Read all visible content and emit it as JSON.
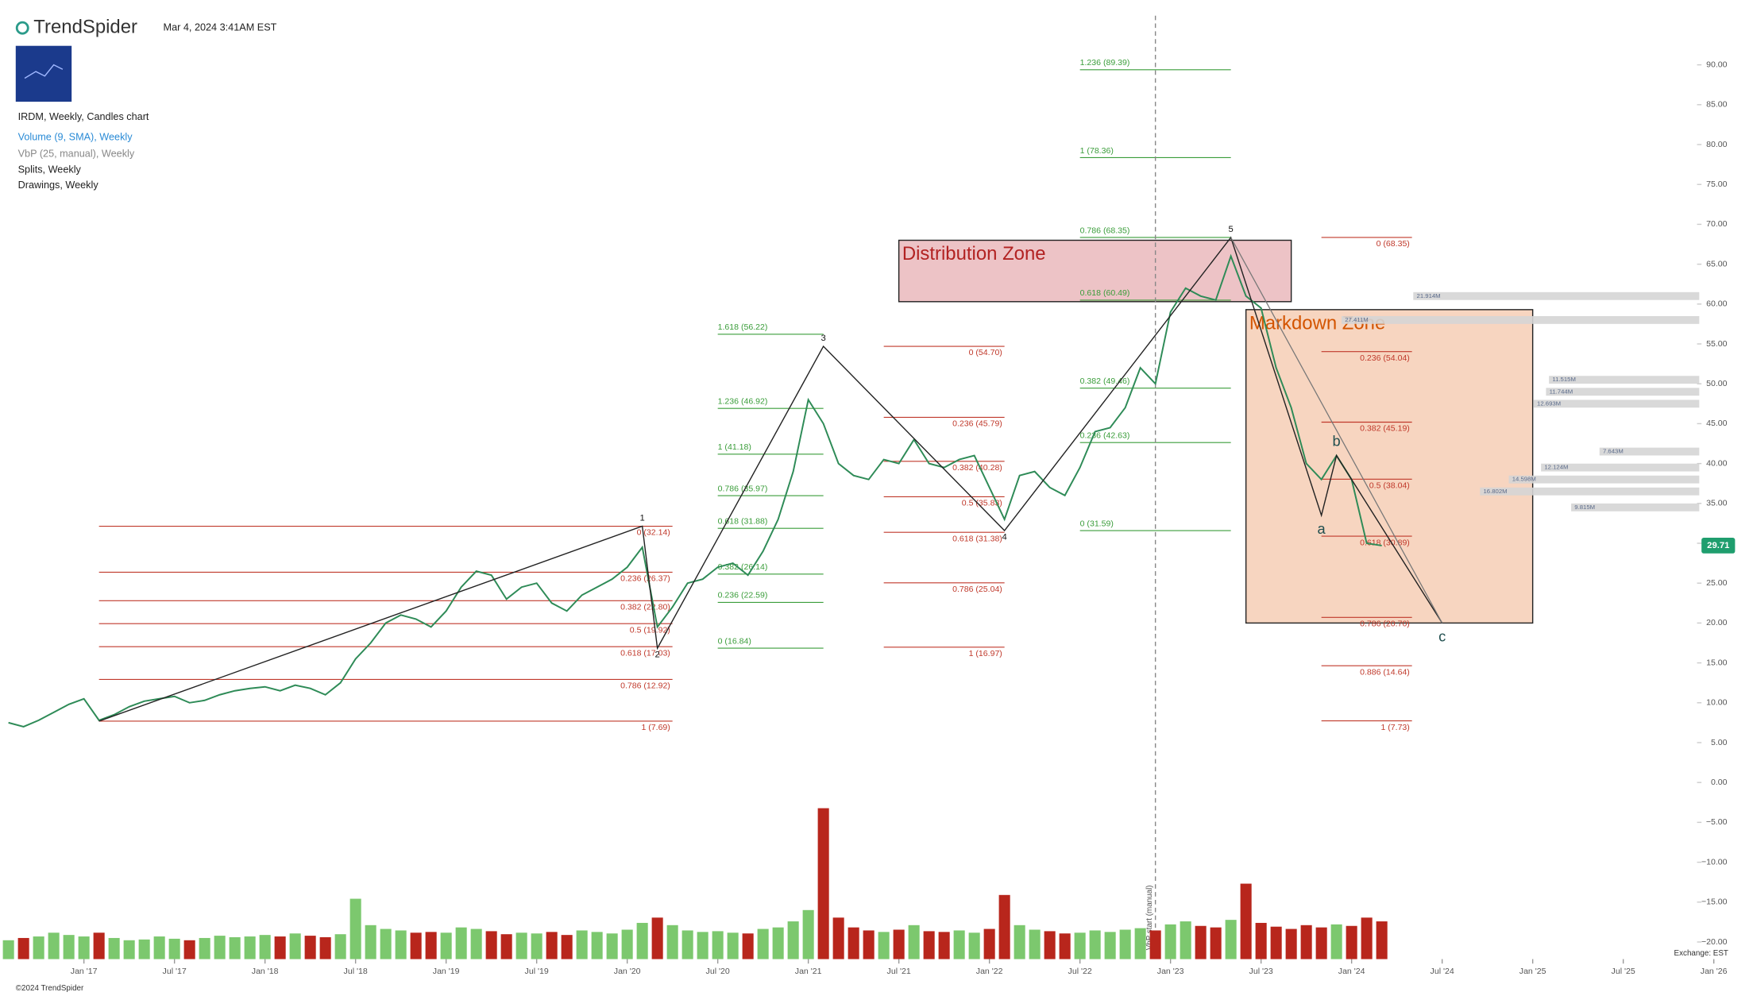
{
  "chart_data": {
    "type": "stock",
    "brand": "TrendSpider",
    "timestamp": "Mar 4, 2024 3:41AM EST",
    "legend_lines": [
      "IRDM, Weekly, Candles chart",
      "Volume (9, SMA), Weekly",
      "VbP (25, manual), Weekly",
      "Splits, Weekly",
      "Drawings, Weekly"
    ],
    "copyright": "©2024 TrendSpider",
    "exchange": "Exchange: EST",
    "last_price": 29.71,
    "x": [
      "2016-08",
      "2016-09",
      "2016-10",
      "2016-11",
      "2016-12",
      "2017-01",
      "2017-02",
      "2017-03",
      "2017-04",
      "2017-05",
      "2017-06",
      "2017-07",
      "2017-08",
      "2017-09",
      "2017-10",
      "2017-11",
      "2017-12",
      "2018-01",
      "2018-02",
      "2018-03",
      "2018-04",
      "2018-05",
      "2018-06",
      "2018-07",
      "2018-08",
      "2018-09",
      "2018-10",
      "2018-11",
      "2018-12",
      "2019-01",
      "2019-02",
      "2019-03",
      "2019-04",
      "2019-05",
      "2019-06",
      "2019-07",
      "2019-08",
      "2019-09",
      "2019-10",
      "2019-11",
      "2019-12",
      "2020-01",
      "2020-02",
      "2020-03",
      "2020-04",
      "2020-05",
      "2020-06",
      "2020-07",
      "2020-08",
      "2020-09",
      "2020-10",
      "2020-11",
      "2020-12",
      "2021-01",
      "2021-02",
      "2021-03",
      "2021-04",
      "2021-05",
      "2021-06",
      "2021-07",
      "2021-08",
      "2021-09",
      "2021-10",
      "2021-11",
      "2021-12",
      "2022-01",
      "2022-02",
      "2022-03",
      "2022-04",
      "2022-05",
      "2022-06",
      "2022-07",
      "2022-08",
      "2022-09",
      "2022-10",
      "2022-11",
      "2022-12",
      "2023-01",
      "2023-02",
      "2023-03",
      "2023-04",
      "2023-05",
      "2023-06",
      "2023-07",
      "2023-08",
      "2023-09",
      "2023-10",
      "2023-11",
      "2023-12",
      "2024-01",
      "2024-02",
      "2024-03"
    ],
    "series": [
      {
        "name": "IRDM",
        "color": "#444444",
        "values": [
          7.5,
          7.0,
          7.8,
          8.8,
          9.8,
          10.5,
          7.8,
          8.5,
          9.5,
          10.2,
          10.5,
          10.8,
          10.0,
          10.3,
          11.0,
          11.5,
          11.8,
          12.0,
          11.5,
          12.2,
          11.8,
          11.0,
          12.5,
          15.5,
          17.5,
          20.0,
          21.0,
          20.5,
          19.5,
          21.5,
          24.5,
          26.5,
          26.0,
          23.0,
          24.5,
          25.0,
          22.5,
          21.5,
          23.5,
          24.5,
          25.5,
          27.0,
          29.5,
          19.5,
          22.0,
          25.0,
          25.5,
          27.0,
          27.5,
          26.0,
          29.0,
          33.0,
          39.0,
          48.0,
          45.0,
          40.0,
          38.5,
          38.0,
          40.5,
          40.0,
          43.0,
          40.0,
          39.5,
          40.5,
          41.0,
          37.0,
          33.0,
          38.5,
          39.0,
          37.0,
          36.0,
          39.5,
          44.0,
          44.5,
          47.0,
          52.0,
          50.0,
          59.0,
          62.0,
          61.0,
          60.5,
          66.0,
          61.0,
          59.5,
          52.0,
          47.0,
          40.0,
          38.0,
          41.0,
          38.0,
          30.0,
          29.71
        ]
      },
      {
        "name": "Volume",
        "axis": "volume",
        "up_color": "#7cc86e",
        "down_color": "#b8261c",
        "values": [
          2.5,
          2.8,
          3.0,
          3.5,
          3.2,
          3.0,
          3.5,
          2.8,
          2.5,
          2.6,
          3.0,
          2.7,
          2.5,
          2.8,
          3.1,
          2.9,
          3.0,
          3.2,
          3.0,
          3.4,
          3.1,
          2.9,
          3.3,
          8.0,
          4.5,
          4.0,
          3.8,
          3.5,
          3.6,
          3.5,
          4.2,
          4.0,
          3.7,
          3.3,
          3.5,
          3.4,
          3.6,
          3.2,
          3.8,
          3.6,
          3.4,
          3.9,
          4.8,
          5.5,
          4.5,
          3.8,
          3.6,
          3.7,
          3.5,
          3.4,
          4.0,
          4.2,
          5.0,
          6.5,
          20.0,
          5.5,
          4.2,
          3.8,
          3.6,
          3.9,
          4.5,
          3.7,
          3.6,
          3.8,
          3.5,
          4.0,
          8.5,
          4.5,
          3.9,
          3.7,
          3.4,
          3.5,
          3.8,
          3.6,
          3.9,
          4.1,
          3.8,
          4.6,
          5.0,
          4.4,
          4.2,
          5.2,
          10.0,
          4.8,
          4.3,
          4.0,
          4.5,
          4.2,
          4.6,
          4.4,
          5.5,
          5.0
        ]
      }
    ],
    "ylim": [
      -22,
      95
    ],
    "yticks": [
      {
        "value": 90,
        "label": "90.00"
      },
      {
        "value": 85,
        "label": "85.00"
      },
      {
        "value": 80,
        "label": "80.00"
      },
      {
        "value": 75,
        "label": "75.00"
      },
      {
        "value": 70,
        "label": "70.00"
      },
      {
        "value": 65,
        "label": "65.00"
      },
      {
        "value": 60,
        "label": "60.00"
      },
      {
        "value": 55,
        "label": "55.00"
      },
      {
        "value": 50,
        "label": "50.00"
      },
      {
        "value": 45,
        "label": "45.00"
      },
      {
        "value": 40,
        "label": "40.00"
      },
      {
        "value": 35,
        "label": "35.00"
      },
      {
        "value": 30,
        "label": "30.00"
      },
      {
        "value": 25,
        "label": "25.00"
      },
      {
        "value": 20,
        "label": "20.00"
      },
      {
        "value": 15,
        "label": "15.00"
      },
      {
        "value": 10,
        "label": "10.00"
      },
      {
        "value": 5,
        "label": "5.00"
      },
      {
        "value": 0,
        "label": "0.00"
      },
      {
        "value": -5,
        "label": "−5.00"
      },
      {
        "value": -10,
        "label": "−10.00"
      },
      {
        "value": -15,
        "label": "−15.00"
      },
      {
        "value": -20,
        "label": "−20.00"
      }
    ],
    "xticks": [
      {
        "value": "2017-01",
        "label": "Jan '17"
      },
      {
        "value": "2017-07",
        "label": "Jul '17"
      },
      {
        "value": "2018-01",
        "label": "Jan '18"
      },
      {
        "value": "2018-07",
        "label": "Jul '18"
      },
      {
        "value": "2019-01",
        "label": "Jan '19"
      },
      {
        "value": "2019-07",
        "label": "Jul '19"
      },
      {
        "value": "2020-01",
        "label": "Jan '20"
      },
      {
        "value": "2020-07",
        "label": "Jul '20"
      },
      {
        "value": "2021-01",
        "label": "Jan '21"
      },
      {
        "value": "2021-07",
        "label": "Jul '21"
      },
      {
        "value": "2022-01",
        "label": "Jan '22"
      },
      {
        "value": "2022-07",
        "label": "Jul '22"
      },
      {
        "value": "2023-01",
        "label": "Jan '23"
      },
      {
        "value": "2023-07",
        "label": "Jul '23"
      },
      {
        "value": "2024-01",
        "label": "Jan '24"
      },
      {
        "value": "2024-07",
        "label": "Jul '24"
      },
      {
        "value": "2025-01",
        "label": "Jan '25"
      },
      {
        "value": "2025-07",
        "label": "Jul '25"
      },
      {
        "value": "2026-01",
        "label": "Jan '26"
      }
    ],
    "fib_sets": [
      {
        "color": "#c0392b",
        "from": "2017-02",
        "to": "2020-04",
        "label_align": "right",
        "levels": [
          {
            "value": 32.14,
            "label": "0 (32.14)"
          },
          {
            "value": 26.37,
            "label": "0.236 (26.37)"
          },
          {
            "value": 22.8,
            "label": "0.382 (22.80)"
          },
          {
            "value": 19.92,
            "label": "0.5 (19.92)"
          },
          {
            "value": 17.03,
            "label": "0.618 (17.03)"
          },
          {
            "value": 12.92,
            "label": "0.786 (12.92)"
          },
          {
            "value": 7.69,
            "label": "1 (7.69)"
          }
        ]
      },
      {
        "color": "#3a9d3a",
        "from": "2020-07",
        "to": "2021-02",
        "label_align": "left",
        "levels": [
          {
            "value": 16.84,
            "label": "0 (16.84)"
          },
          {
            "value": 22.59,
            "label": "0.236 (22.59)"
          },
          {
            "value": 26.14,
            "label": "0.382 (26.14)"
          },
          {
            "value": 31.88,
            "label": "0.618 (31.88)"
          },
          {
            "value": 35.97,
            "label": "0.786 (35.97)"
          },
          {
            "value": 41.18,
            "label": "1 (41.18)"
          },
          {
            "value": 46.92,
            "label": "1.236 (46.92)"
          },
          {
            "value": 56.22,
            "label": "1.618 (56.22)"
          }
        ]
      },
      {
        "color": "#c0392b",
        "from": "2021-06",
        "to": "2022-02",
        "label_align": "right",
        "levels": [
          {
            "value": 54.7,
            "label": "0 (54.70)"
          },
          {
            "value": 45.79,
            "label": "0.236 (45.79)"
          },
          {
            "value": 40.28,
            "label": "0.382 (40.28)"
          },
          {
            "value": 35.83,
            "label": "0.5 (35.83)"
          },
          {
            "value": 31.38,
            "label": "0.618 (31.38)"
          },
          {
            "value": 25.04,
            "label": "0.786 (25.04)"
          },
          {
            "value": 16.97,
            "label": "1 (16.97)"
          }
        ]
      },
      {
        "color": "#3a9d3a",
        "from": "2022-07",
        "to": "2023-05",
        "label_align": "left",
        "levels": [
          {
            "value": 31.59,
            "label": "0 (31.59)"
          },
          {
            "value": 42.63,
            "label": "0.236 (42.63)"
          },
          {
            "value": 49.46,
            "label": "0.382 (49.46)"
          },
          {
            "value": 60.49,
            "label": "0.618 (60.49)"
          },
          {
            "value": 68.35,
            "label": "0.786 (68.35)"
          },
          {
            "value": 78.36,
            "label": "1 (78.36)"
          },
          {
            "value": 89.39,
            "label": "1.236 (89.39)"
          }
        ]
      },
      {
        "color": "#c0392b",
        "from": "2023-11",
        "to": "2024-05",
        "label_align": "right",
        "levels": [
          {
            "value": 68.35,
            "label": "0 (68.35)"
          },
          {
            "value": 54.04,
            "label": "0.236 (54.04)"
          },
          {
            "value": 45.19,
            "label": "0.382 (45.19)"
          },
          {
            "value": 38.04,
            "label": "0.5 (38.04)"
          },
          {
            "value": 30.89,
            "label": "0.618 (30.89)"
          },
          {
            "value": 20.7,
            "label": "0.786 (20.70)"
          },
          {
            "value": 14.64,
            "label": "0.886 (14.64)"
          },
          {
            "value": 7.73,
            "label": "1 (7.73)"
          }
        ]
      }
    ],
    "trend_origin": {
      "x": "2017-02",
      "y": 7.69
    },
    "waves": [
      {
        "x": "2020-02",
        "y": 32.14,
        "label": "1"
      },
      {
        "x": "2020-03",
        "y": 16.84,
        "label": "2"
      },
      {
        "x": "2021-02",
        "y": 54.7,
        "label": "3"
      },
      {
        "x": "2022-02",
        "y": 31.59,
        "label": "4"
      },
      {
        "x": "2023-05",
        "y": 68.35,
        "label": "5"
      },
      {
        "x": "2023-11",
        "y": 33.5,
        "label": "a"
      },
      {
        "x": "2023-12",
        "y": 41,
        "label": "b"
      },
      {
        "x": "2024-07",
        "y": 20,
        "label": "c"
      }
    ],
    "zones": [
      {
        "label": "Distribution Zone",
        "color": "#b22222",
        "fill": "#e8b4b8",
        "from": "2021-07",
        "to": "2023-09",
        "top": 68,
        "bottom": 60.3
      },
      {
        "label": "Markdown Zone",
        "color": "#d35400",
        "fill": "#f5cbb0",
        "from": "2023-06",
        "to": "2025-01",
        "top": 59.3,
        "bottom": 20
      }
    ],
    "vbp_start": {
      "x": "2022-12",
      "label": "VbP start (manual)"
    },
    "volume_profile": [
      {
        "price": 61,
        "value": 21.914,
        "label": "21.914M"
      },
      {
        "price": 58,
        "value": 27.411,
        "label": "27.411M"
      },
      {
        "price": 50.5,
        "value": 11.515,
        "label": "11.515M"
      },
      {
        "price": 49,
        "value": 11.744,
        "label": "11.744M"
      },
      {
        "price": 47.5,
        "value": 12.693,
        "label": "12.693M"
      },
      {
        "price": 41.5,
        "value": 7.643,
        "label": "7.643M"
      },
      {
        "price": 39.5,
        "value": 12.124,
        "label": "12.124M"
      },
      {
        "price": 38,
        "value": 14.598,
        "label": "14.598M"
      },
      {
        "price": 36.5,
        "value": 16.802,
        "label": "16.802M"
      },
      {
        "price": 34.5,
        "value": 9.815,
        "label": "9.815M"
      }
    ]
  }
}
